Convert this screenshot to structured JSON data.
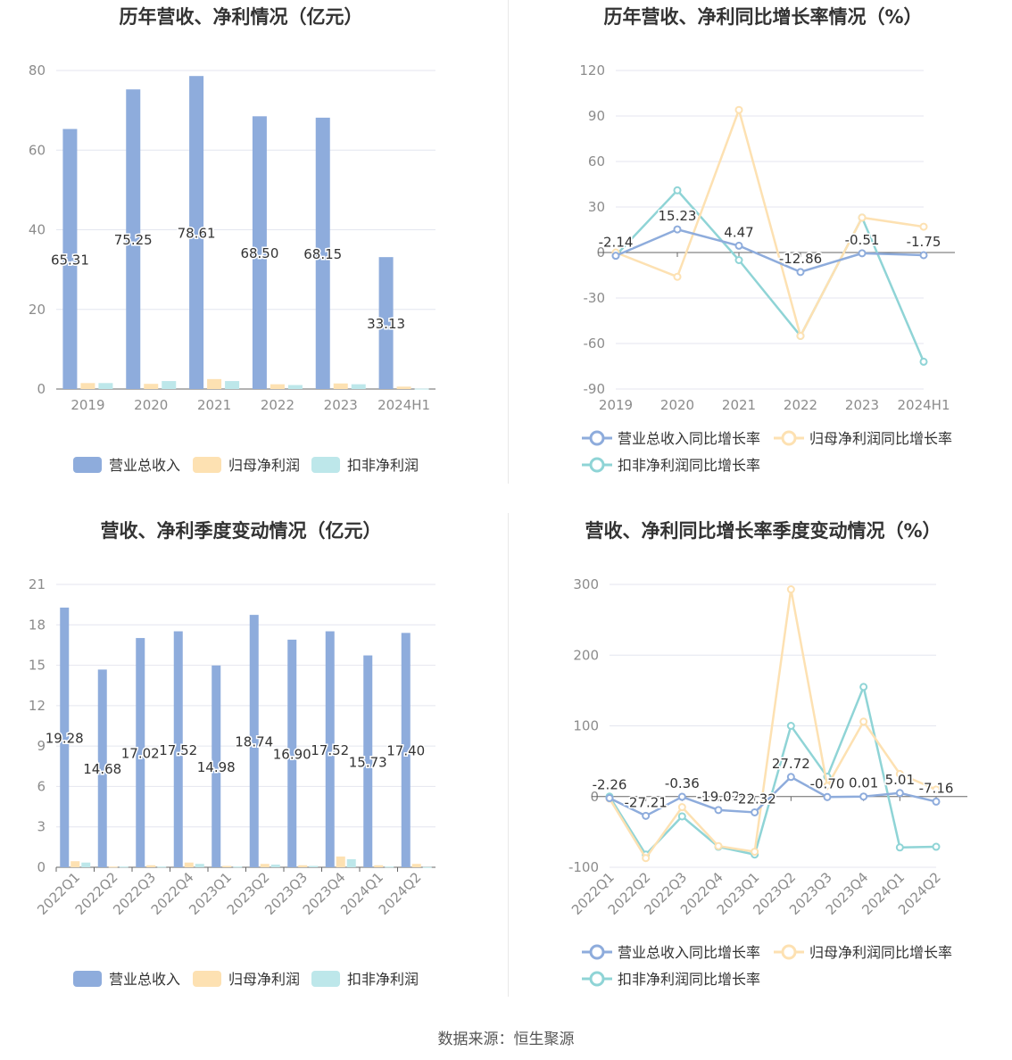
{
  "source_text": "数据来源：恒生聚源",
  "colors": {
    "revenue": "#8eacdc",
    "net_profit": "#fde1b2",
    "deducted_profit": "#bde7ea",
    "revenue_line": "#8eacdc",
    "net_profit_line": "#fde1b2",
    "deducted_profit_line": "#8fd4d6"
  },
  "chart_data": [
    {
      "id": "annual-amount",
      "type": "bar",
      "title": "历年营收、净利情况（亿元）",
      "categories": [
        "2019",
        "2020",
        "2021",
        "2022",
        "2023",
        "2024H1"
      ],
      "ylim": [
        0,
        80
      ],
      "yticks": [
        0,
        20,
        40,
        60,
        80
      ],
      "series": [
        {
          "name": "营业总收入",
          "values": [
            65.31,
            75.25,
            78.61,
            68.5,
            68.15,
            33.13
          ],
          "labels": [
            "65.31",
            "75.25",
            "78.61",
            "68.50",
            "68.15",
            "33.13"
          ]
        },
        {
          "name": "归母净利润",
          "values": [
            1.5,
            1.3,
            2.5,
            1.2,
            1.4,
            0.6
          ]
        },
        {
          "name": "扣非净利润",
          "values": [
            1.5,
            2.0,
            2.0,
            1.0,
            1.2,
            0.1
          ]
        }
      ],
      "legend": "bottom",
      "grid": true
    },
    {
      "id": "annual-growth",
      "type": "line",
      "title": "历年营收、净利同比增长率情况（%）",
      "categories": [
        "2019",
        "2020",
        "2021",
        "2022",
        "2023",
        "2024H1"
      ],
      "ylim": [
        -90,
        120
      ],
      "yticks": [
        -90,
        -60,
        -30,
        0,
        30,
        60,
        90,
        120
      ],
      "series": [
        {
          "name": "营业总收入同比增长率",
          "values": [
            -2.14,
            15.23,
            4.47,
            -12.86,
            -0.51,
            -1.75
          ],
          "labels": [
            "-2.14",
            "15.23",
            "4.47",
            "-12.86",
            "-0.51",
            "-1.75"
          ]
        },
        {
          "name": "归母净利润同比增长率",
          "values": [
            0,
            -16,
            94,
            -55,
            23,
            17
          ]
        },
        {
          "name": "扣非净利润同比增长率",
          "values": [
            -2,
            41,
            -5,
            -55,
            23,
            -72
          ]
        }
      ],
      "legend": "bottom",
      "grid": true
    },
    {
      "id": "quarterly-amount",
      "type": "bar",
      "title": "营收、净利季度变动情况（亿元）",
      "categories": [
        "2022Q1",
        "2022Q2",
        "2022Q3",
        "2022Q4",
        "2023Q1",
        "2023Q2",
        "2023Q3",
        "2023Q4",
        "2024Q1",
        "2024Q2"
      ],
      "ylim": [
        0,
        21
      ],
      "yticks": [
        0,
        3,
        6,
        9,
        12,
        15,
        18,
        21
      ],
      "series": [
        {
          "name": "营业总收入",
          "values": [
            19.28,
            14.68,
            17.02,
            17.52,
            14.98,
            18.74,
            16.9,
            17.52,
            15.73,
            17.4
          ],
          "labels": [
            "19.28",
            "14.68",
            "17.02",
            "17.52",
            "14.98",
            "18.74",
            "16.90",
            "17.52",
            "15.73",
            "17.40"
          ]
        },
        {
          "name": "归母净利润",
          "values": [
            0.45,
            0.05,
            0.15,
            0.35,
            0.1,
            0.25,
            0.15,
            0.8,
            0.15,
            0.25
          ]
        },
        {
          "name": "扣非净利润",
          "values": [
            0.35,
            0.05,
            0.05,
            0.25,
            0.05,
            0.2,
            0.1,
            0.6,
            0.05,
            0.02
          ]
        }
      ],
      "legend": "bottom",
      "grid": true
    },
    {
      "id": "quarterly-growth",
      "type": "line",
      "title": "营收、净利同比增长率季度变动情况（%）",
      "categories": [
        "2022Q1",
        "2022Q2",
        "2022Q3",
        "2022Q4",
        "2023Q1",
        "2023Q2",
        "2023Q3",
        "2023Q4",
        "2024Q1",
        "2024Q2"
      ],
      "ylim": [
        -100,
        300
      ],
      "yticks": [
        -100,
        0,
        100,
        200,
        300
      ],
      "series": [
        {
          "name": "营业总收入同比增长率",
          "values": [
            -2.26,
            -27.21,
            -0.36,
            -19.02,
            -22.32,
            27.72,
            -0.7,
            0.01,
            5.01,
            -7.16
          ],
          "labels": [
            "-2.26",
            "-27.21",
            "-0.36",
            "-19.02",
            "-22.32",
            "27.72",
            "-0.70",
            "0.01",
            "5.01",
            "-7.16"
          ]
        },
        {
          "name": "归母净利润同比增长率",
          "values": [
            -3,
            -87,
            -15,
            -70,
            -78,
            293,
            15,
            106,
            32,
            10
          ]
        },
        {
          "name": "扣非净利润同比增长率",
          "values": [
            0,
            -82,
            -28,
            -71,
            -82,
            100,
            28,
            155,
            -72,
            -71
          ]
        }
      ],
      "legend": "bottom",
      "grid": true
    }
  ]
}
